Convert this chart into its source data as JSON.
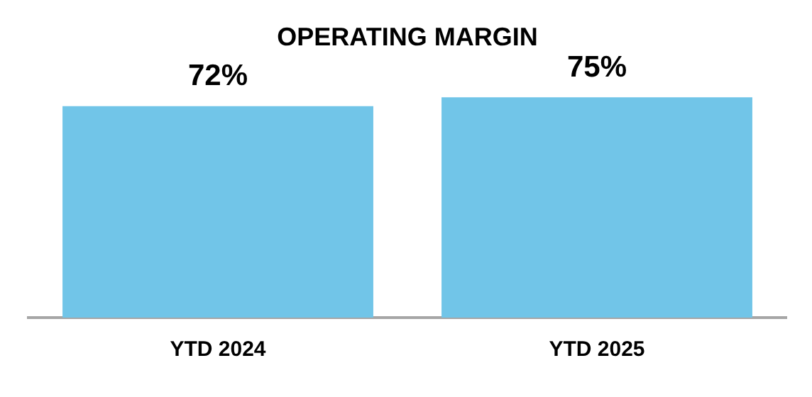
{
  "chart_data": {
    "type": "bar",
    "title": "OPERATING MARGIN",
    "categories": [
      "YTD 2024",
      "YTD 2025"
    ],
    "values": [
      72,
      75
    ],
    "value_labels": [
      "72%",
      "75%"
    ],
    "color": "#71c5e8",
    "tick_labels": "x",
    "grid": false,
    "legend": false
  }
}
